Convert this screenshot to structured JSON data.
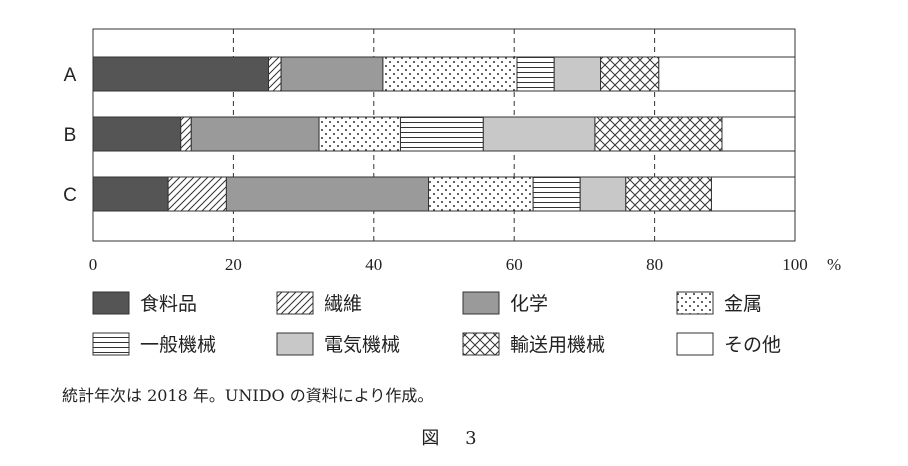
{
  "chart_data": {
    "type": "bar",
    "orientation": "horizontal",
    "stacked": true,
    "categories": [
      "A",
      "B",
      "C"
    ],
    "series": [
      {
        "name": "食料品",
        "pattern": "solid-dark",
        "values": [
          25.0,
          12.5,
          10.7
        ]
      },
      {
        "name": "繊維",
        "pattern": "hatch",
        "values": [
          1.8,
          1.5,
          8.3
        ]
      },
      {
        "name": "化学",
        "pattern": "solid-gray",
        "values": [
          14.5,
          18.2,
          28.8
        ]
      },
      {
        "name": "金属",
        "pattern": "dots",
        "values": [
          19.1,
          11.6,
          14.9
        ]
      },
      {
        "name": "一般機械",
        "pattern": "hlines",
        "values": [
          5.3,
          11.8,
          6.7
        ]
      },
      {
        "name": "電気機械",
        "pattern": "light-gray",
        "values": [
          6.6,
          15.9,
          6.5
        ]
      },
      {
        "name": "輸送用機械",
        "pattern": "crosshatch",
        "values": [
          8.3,
          18.1,
          12.2
        ]
      },
      {
        "name": "その他",
        "pattern": "white",
        "values": [
          19.4,
          10.4,
          11.9
        ]
      }
    ],
    "xlim": [
      0,
      100
    ],
    "xticks": [
      "0",
      "20",
      "40",
      "60",
      "80",
      "100"
    ],
    "xunit": "%",
    "grid": "vertical-dashed",
    "legend": "bottom",
    "colors": {
      "dark": "#555555",
      "gray": "#9a9a9a",
      "light": "#c8c8c8",
      "line": "#333333"
    }
  },
  "note": "統計年次は 2018 年。UNIDO の資料により作成。",
  "figure_label": "図 3"
}
